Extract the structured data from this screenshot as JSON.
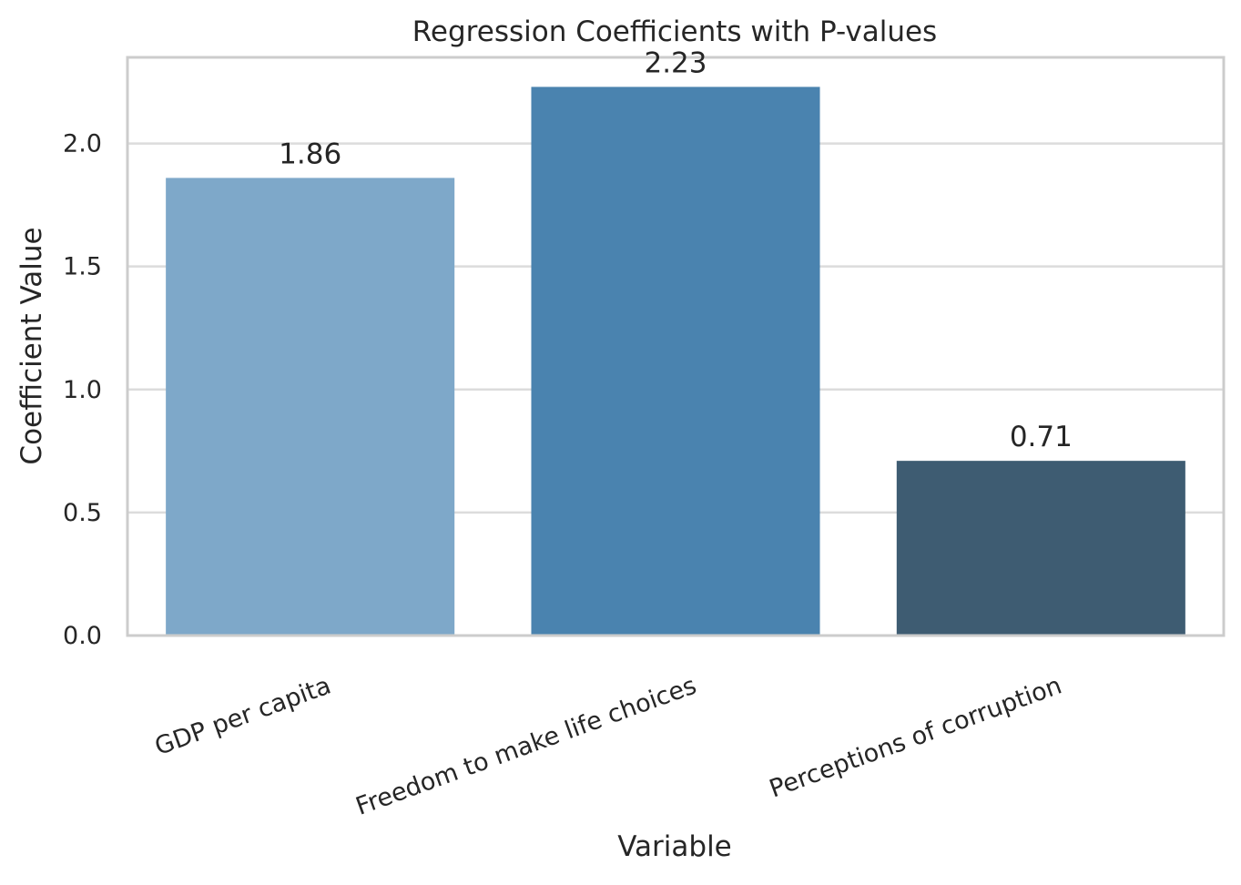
{
  "chart_data": {
    "type": "bar",
    "title": "Regression Coefficients with P-values",
    "xlabel": "Variable",
    "ylabel": "Coefficient Value",
    "categories": [
      "GDP per capita",
      "Freedom to make life choices",
      "Perceptions of corruption"
    ],
    "values": [
      1.86,
      2.23,
      0.71
    ],
    "value_labels": [
      "1.86",
      "2.23",
      "0.71"
    ],
    "ylim": [
      0,
      2.35
    ],
    "yticks": [
      0.0,
      0.5,
      1.0,
      1.5,
      2.0
    ],
    "ytick_labels": [
      "0.0",
      "0.5",
      "1.0",
      "1.5",
      "2.0"
    ],
    "bar_colors": [
      "#7ea8c9",
      "#4a83af",
      "#3e5c72"
    ],
    "grid": "horizontal",
    "legend": "none",
    "xtick_rotation_deg": -20
  }
}
